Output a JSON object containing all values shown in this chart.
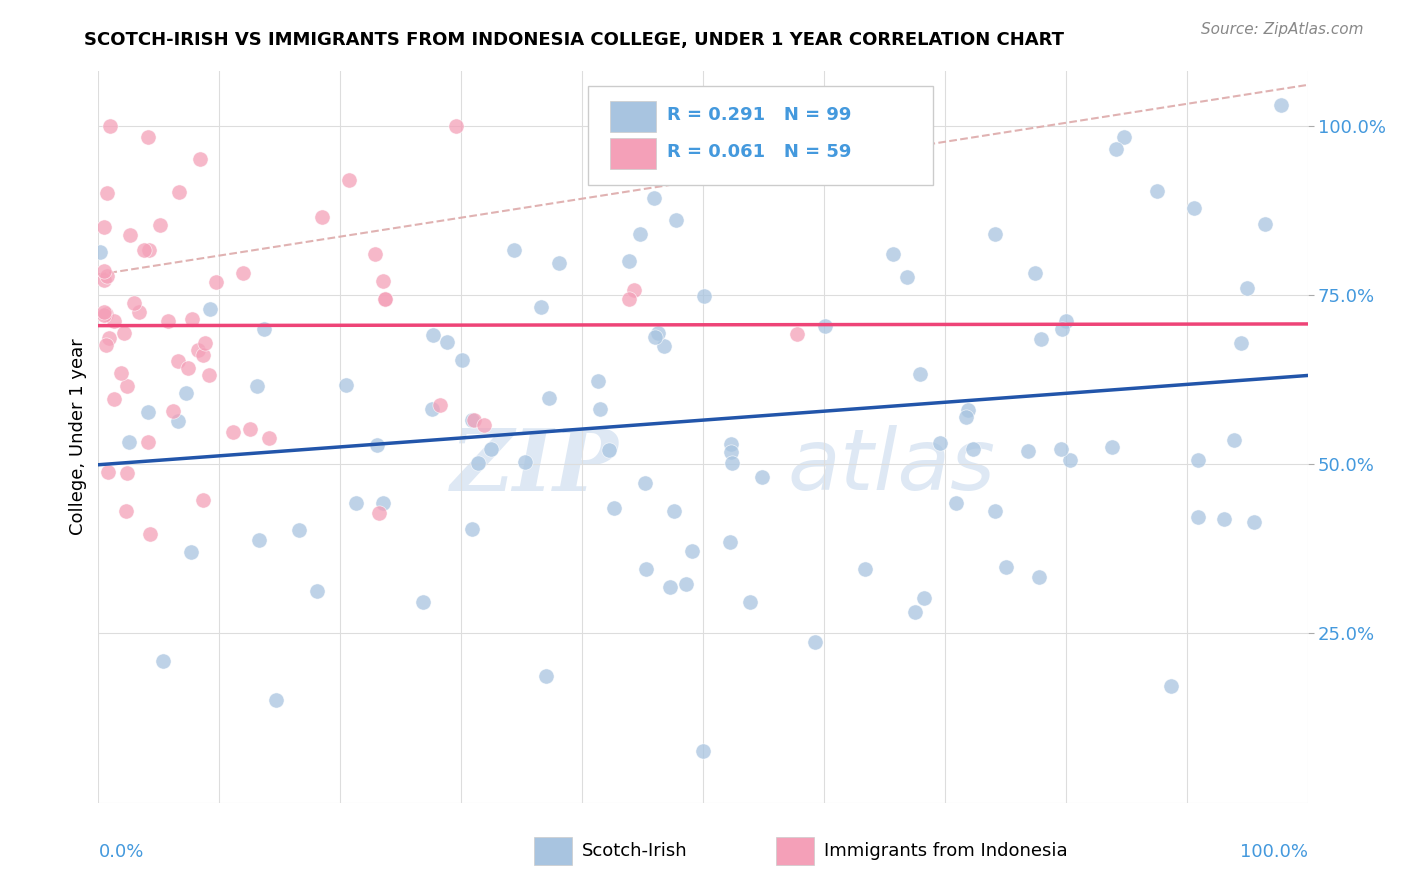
{
  "title": "SCOTCH-IRISH VS IMMIGRANTS FROM INDONESIA COLLEGE, UNDER 1 YEAR CORRELATION CHART",
  "source_text": "Source: ZipAtlas.com",
  "ylabel": "College, Under 1 year",
  "legend_blue_label": "Scotch-Irish",
  "legend_pink_label": "Immigrants from Indonesia",
  "legend_blue_R": "R = 0.291",
  "legend_blue_N": "N = 99",
  "legend_pink_R": "R = 0.061",
  "legend_pink_N": "N = 59",
  "watermark_zip": "ZIP",
  "watermark_atlas": "atlas",
  "blue_scatter_color": "#A8C4E0",
  "pink_scatter_color": "#F4A0B8",
  "blue_line_color": "#2255AA",
  "pink_line_color": "#EE4477",
  "dashed_line_color": "#DDAAAA",
  "grid_color": "#DDDDDD",
  "ytick_color": "#4499DD",
  "xtick_color": "#4499DD",
  "legend_bg": "#FFFFFF",
  "legend_border": "#CCCCCC",
  "blue_legend_color": "#A8C4E0",
  "pink_legend_color": "#F4A0B8"
}
